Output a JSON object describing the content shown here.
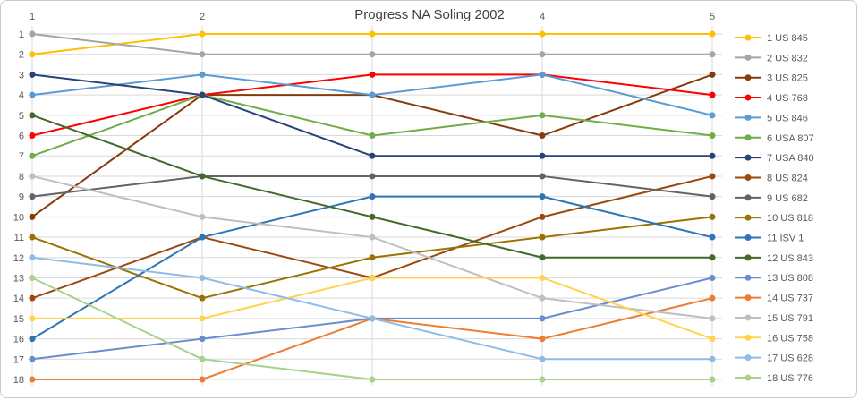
{
  "frame": {
    "background": "#FFFFFF",
    "border_color": "#C9C9C9"
  },
  "colors": {
    "title_text": "#404040",
    "axis_text": "#595959",
    "legend_text": "#595959",
    "gridline": "#D9D9D9"
  },
  "chart_data": {
    "type": "line",
    "subtype": "bump-rank-progress",
    "title": "Progress NA Soling 2002",
    "x_values": [
      1,
      2,
      3,
      4,
      5
    ],
    "x_tick_labels": [
      {
        "text": "1",
        "race": 1
      },
      {
        "text": "2",
        "race": 2
      },
      {
        "text": "4",
        "race": 4
      },
      {
        "text": "5",
        "race": 5
      }
    ],
    "y_axis": {
      "ticks": [
        1,
        2,
        3,
        4,
        5,
        6,
        7,
        8,
        9,
        10,
        11,
        12,
        13,
        14,
        15,
        16,
        17,
        18
      ],
      "min": 1,
      "max": 18,
      "inverted": true
    },
    "grid": true,
    "legend_position": "right",
    "series": [
      {
        "name": "1 US 845",
        "color": "#FFC000",
        "ranks": [
          2,
          1,
          1,
          1,
          1
        ]
      },
      {
        "name": "2 US 832",
        "color": "#A5A5A5",
        "ranks": [
          1,
          2,
          2,
          2,
          2
        ]
      },
      {
        "name": "3 US 825",
        "color": "#843C0C",
        "ranks": [
          10,
          4,
          4,
          6,
          3
        ]
      },
      {
        "name": "4 US 768",
        "color": "#FF0000",
        "ranks": [
          6,
          4,
          3,
          3,
          4
        ]
      },
      {
        "name": "5 US 846",
        "color": "#5B9BD5",
        "ranks": [
          4,
          3,
          4,
          3,
          5
        ]
      },
      {
        "name": "6 USA 807",
        "color": "#70AD47",
        "ranks": [
          7,
          4,
          6,
          5,
          6
        ]
      },
      {
        "name": "7 USA 840",
        "color": "#264478",
        "ranks": [
          3,
          4,
          7,
          7,
          7
        ]
      },
      {
        "name": "8 US 824",
        "color": "#9E480E",
        "ranks": [
          14,
          11,
          13,
          10,
          8
        ]
      },
      {
        "name": "9 US 682",
        "color": "#636363",
        "ranks": [
          9,
          8,
          8,
          8,
          9
        ]
      },
      {
        "name": "10 US 818",
        "color": "#997300",
        "ranks": [
          11,
          14,
          12,
          11,
          10
        ]
      },
      {
        "name": "11 ISV 1",
        "color": "#2E75B6",
        "ranks": [
          16,
          11,
          9,
          9,
          11
        ]
      },
      {
        "name": "12 US 843",
        "color": "#43682B",
        "ranks": [
          5,
          8,
          10,
          12,
          12
        ]
      },
      {
        "name": "13 US 808",
        "color": "#698ED0",
        "ranks": [
          17,
          16,
          15,
          15,
          13
        ]
      },
      {
        "name": "14 US 737",
        "color": "#ED7D31",
        "ranks": [
          18,
          18,
          15,
          16,
          14
        ]
      },
      {
        "name": "15 US 791",
        "color": "#BFBFBF",
        "ranks": [
          8,
          10,
          11,
          14,
          15
        ]
      },
      {
        "name": "16 US 758",
        "color": "#FFD34D",
        "ranks": [
          15,
          15,
          13,
          13,
          16
        ]
      },
      {
        "name": "17 US 628",
        "color": "#8FBCE6",
        "ranks": [
          12,
          13,
          15,
          17,
          17
        ]
      },
      {
        "name": "18 US 776",
        "color": "#A9D18E",
        "ranks": [
          13,
          17,
          18,
          18,
          18
        ]
      }
    ]
  }
}
